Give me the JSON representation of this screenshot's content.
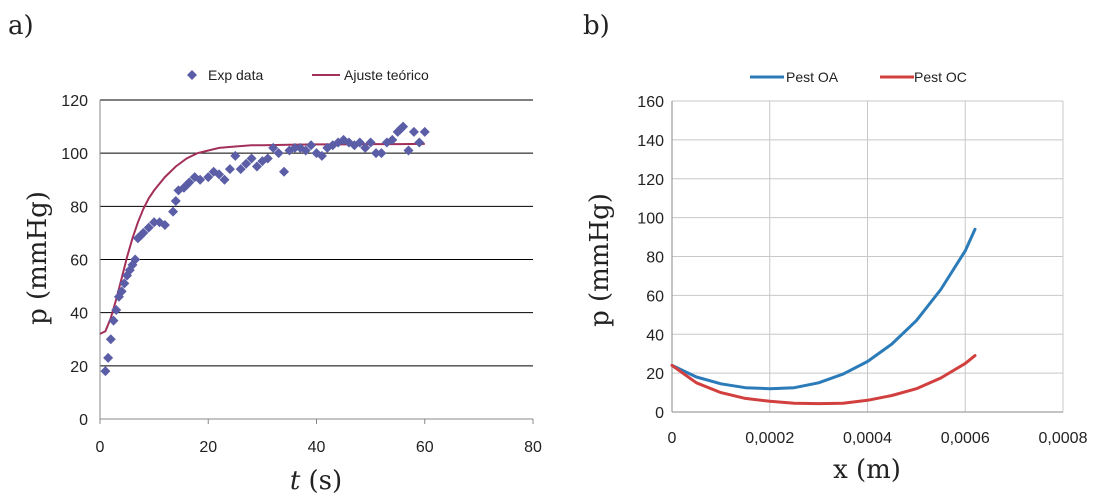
{
  "chart_data": [
    {
      "panel_label": "a)",
      "type": "scatter",
      "xlabel_italic": "t",
      "xlabel_rest": " (s)",
      "ylabel": "p (mmHg)",
      "xlim": [
        0,
        80
      ],
      "ylim": [
        0,
        120
      ],
      "x_ticks": [
        "0",
        "20",
        "40",
        "60",
        "80"
      ],
      "y_ticks": [
        "0",
        "20",
        "40",
        "60",
        "80",
        "100",
        "120"
      ],
      "grid": "horizontal",
      "legend_position": "top",
      "series": [
        {
          "name": "Exp data",
          "kind": "scatter",
          "marker": "diamond",
          "color": "#5b5ea6",
          "x": [
            1,
            1.5,
            2,
            2.5,
            3,
            3.5,
            4,
            4.5,
            5,
            5.5,
            6,
            6.5,
            7,
            7.5,
            8,
            9,
            10,
            11,
            12,
            13.5,
            14,
            14.5,
            15.5,
            16,
            16.5,
            17.5,
            18.5,
            20,
            21,
            22,
            23,
            24,
            25,
            26,
            27,
            28,
            29,
            30,
            31,
            32,
            33,
            34,
            35,
            36,
            37,
            38,
            39,
            40,
            41,
            42,
            43,
            44,
            45,
            46,
            47,
            48,
            49,
            50,
            51,
            52,
            53,
            54,
            55,
            55.5,
            56,
            57,
            58,
            59,
            60
          ],
          "y": [
            18,
            23,
            30,
            37,
            41,
            46,
            48,
            51,
            54,
            56,
            58,
            60,
            68,
            69,
            70,
            72,
            74,
            74,
            73,
            78,
            82,
            86,
            87,
            88,
            89,
            91,
            90,
            91,
            93,
            92,
            90,
            94,
            99,
            94,
            96,
            98,
            95,
            97,
            98,
            102,
            100,
            93,
            101,
            102,
            102,
            101,
            103,
            100,
            99,
            102,
            103,
            104,
            105,
            104,
            103,
            104,
            102,
            104,
            100,
            100,
            104,
            105,
            108,
            109,
            110,
            101,
            108,
            104,
            108
          ]
        },
        {
          "name": "Ajuste teórico",
          "kind": "line",
          "color": "#a3305a",
          "x": [
            0,
            1,
            2,
            3,
            4,
            5,
            6,
            7,
            8,
            9,
            10,
            12,
            14,
            16,
            18,
            20,
            22,
            25,
            28,
            30,
            35,
            40,
            45,
            50,
            55,
            60
          ],
          "y": [
            32,
            33,
            38,
            45,
            53,
            61,
            68,
            74,
            79,
            83,
            86,
            91,
            95,
            98,
            100,
            101,
            102,
            102.5,
            103,
            103,
            103.2,
            103.3,
            103.3,
            103.4,
            103.4,
            103.5
          ]
        }
      ]
    },
    {
      "panel_label": "b)",
      "type": "line",
      "xlabel": "x (m)",
      "ylabel": "p (mmHg)",
      "xlim": [
        0,
        0.0008
      ],
      "ylim": [
        0,
        160
      ],
      "x_ticks": [
        "0",
        "0,0002",
        "0,0004",
        "0,0006",
        "0,0008"
      ],
      "y_ticks": [
        "0",
        "20",
        "40",
        "60",
        "80",
        "100",
        "120",
        "140",
        "160"
      ],
      "grid": "both",
      "legend_position": "top",
      "series": [
        {
          "name": "Pest OA",
          "color": "#2b7bb9",
          "x": [
            0,
            5e-05,
            0.0001,
            0.00015,
            0.0002,
            0.00025,
            0.0003,
            0.00035,
            0.0004,
            0.00045,
            0.0005,
            0.00055,
            0.0006,
            0.00062
          ],
          "y": [
            24,
            18,
            14.5,
            12.5,
            12,
            12.5,
            15,
            19.5,
            26,
            35,
            47,
            63,
            83,
            94
          ]
        },
        {
          "name": "Pest OC",
          "color": "#d23f3f",
          "x": [
            0,
            5e-05,
            0.0001,
            0.00015,
            0.0002,
            0.00025,
            0.0003,
            0.00035,
            0.0004,
            0.00045,
            0.0005,
            0.00055,
            0.0006,
            0.00062
          ],
          "y": [
            24,
            15,
            10,
            7,
            5.5,
            4.5,
            4.3,
            4.5,
            6,
            8.5,
            12,
            17.5,
            25,
            29
          ]
        }
      ]
    }
  ]
}
